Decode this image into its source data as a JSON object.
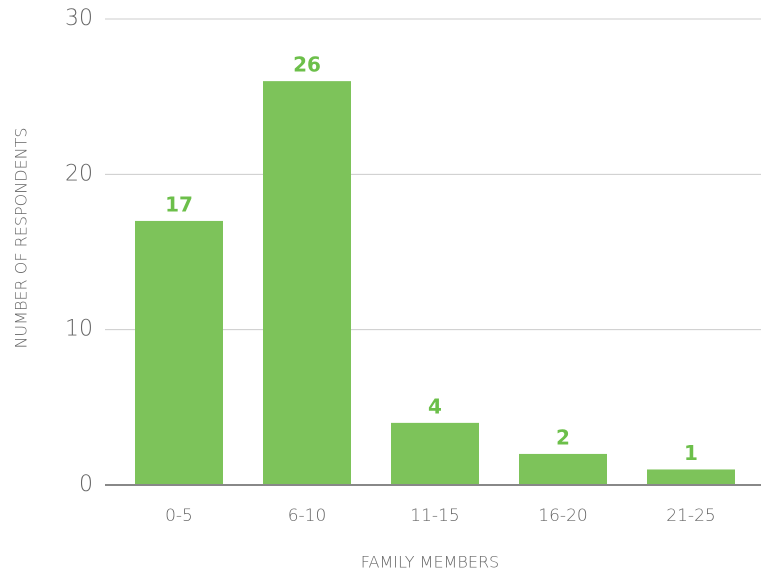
{
  "chart_data": {
    "type": "bar",
    "x_label": "FAMILY MEMBERS",
    "y_label": "NUMBER OF RESPONDENTS",
    "categories": [
      "0-5",
      "6-10",
      "11-15",
      "16-20",
      "21-25"
    ],
    "values": [
      17,
      26,
      4,
      2,
      1
    ],
    "color": "#7dc35a",
    "ylim": [
      0,
      30
    ],
    "yticks": [
      0,
      10,
      20,
      30
    ],
    "grid": true
  }
}
